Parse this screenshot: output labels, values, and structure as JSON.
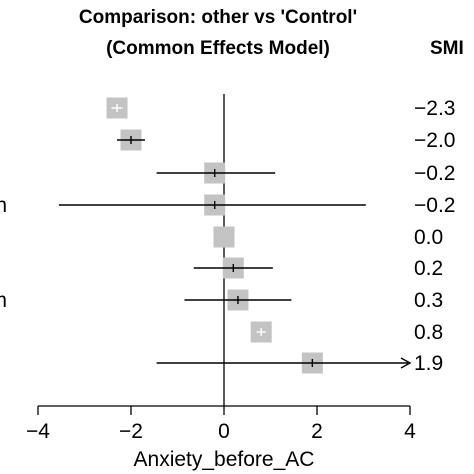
{
  "chart_data": {
    "type": "forest",
    "title_lines": [
      "Comparison: other vs 'Control'",
      "(Common Effects Model)"
    ],
    "smd_header": "SMI",
    "xlabel": "Anxiety_before_AC",
    "xlim": [
      -4,
      4
    ],
    "xticks": [
      -4,
      -2,
      0,
      2,
      4
    ],
    "xtick_labels": [
      "−4",
      "−2",
      "0",
      "2",
      "4"
    ],
    "reference_line": 0,
    "rows": [
      {
        "row_label": "",
        "estimate": -2.3,
        "ci_low": -2.42,
        "ci_high": -2.18,
        "smd_label": "−2.3",
        "ci_inside_box": true
      },
      {
        "row_label": "",
        "estimate": -2.0,
        "ci_low": -2.3,
        "ci_high": -1.7,
        "smd_label": "−2.0",
        "ci_inside_box": false
      },
      {
        "row_label": "",
        "estimate": -0.2,
        "ci_low": -1.45,
        "ci_high": 1.1,
        "smd_label": "−0.2",
        "ci_inside_box": false
      },
      {
        "row_label": "n",
        "estimate": -0.2,
        "ci_low": -3.55,
        "ci_high": 3.05,
        "smd_label": "−0.2",
        "ci_inside_box": false
      },
      {
        "row_label": "",
        "estimate": 0.0,
        "ci_low": null,
        "ci_high": null,
        "smd_label": "0.0",
        "ci_inside_box": false
      },
      {
        "row_label": "",
        "estimate": 0.2,
        "ci_low": -0.65,
        "ci_high": 1.05,
        "smd_label": "0.2",
        "ci_inside_box": false
      },
      {
        "row_label": "m",
        "estimate": 0.3,
        "ci_low": -0.85,
        "ci_high": 1.45,
        "smd_label": "0.3",
        "ci_inside_box": false
      },
      {
        "row_label": "",
        "estimate": 0.8,
        "ci_low": 0.7,
        "ci_high": 0.9,
        "smd_label": "0.8",
        "ci_inside_box": true
      },
      {
        "row_label": "",
        "estimate": 1.9,
        "ci_low": -1.45,
        "ci_high": 4.0,
        "smd_label": "1.9",
        "ci_inside_box": false,
        "arrow_right": true
      }
    ],
    "colors": {
      "box": "#c3c3c3",
      "line": "#000000",
      "inner_tick": "#ffffff"
    }
  }
}
